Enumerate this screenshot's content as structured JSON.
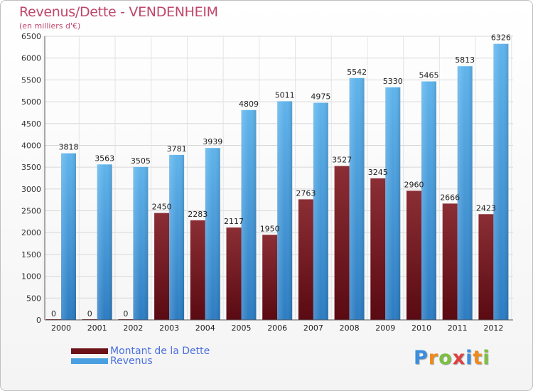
{
  "header": {
    "title": "Revenus/Dette - VENDENHEIM",
    "subtitle": "(en milliers d'€)"
  },
  "colors": {
    "title": "#c0456b",
    "dette_top": "#8b2e35",
    "dette_bottom": "#5a0a12",
    "revenus_top": "#5fb4ec",
    "revenus_bottom": "#2c7cc2",
    "legend_text": "#4a6fe0"
  },
  "legend": {
    "items": [
      {
        "label": "Montant de la Dette",
        "color": "#6b1219"
      },
      {
        "label": "Revenus",
        "color": "#4a9fe0"
      }
    ]
  },
  "logo": {
    "letters": [
      "P",
      "r",
      "o",
      "x",
      "i",
      "t",
      "i"
    ],
    "colors": [
      "#3a8ee0",
      "#f08a1c",
      "#7cc040",
      "#e04040",
      "#3a8ee0",
      "#f08a1c",
      "#7cc040"
    ]
  },
  "chart_data": {
    "type": "bar",
    "categories": [
      "2000",
      "2001",
      "2002",
      "2003",
      "2004",
      "2005",
      "2006",
      "2007",
      "2008",
      "2009",
      "2010",
      "2011",
      "2012"
    ],
    "series": [
      {
        "name": "Montant de la Dette",
        "values": [
          0,
          0,
          0,
          2450,
          2283,
          2117,
          1950,
          2763,
          3527,
          3245,
          2960,
          2666,
          2423
        ]
      },
      {
        "name": "Revenus",
        "values": [
          3818,
          3563,
          3505,
          3781,
          3939,
          4809,
          5011,
          4975,
          5542,
          5330,
          5465,
          5813,
          6326
        ]
      }
    ],
    "ylim": [
      0,
      6500
    ],
    "yticks": [
      0,
      500,
      1000,
      1500,
      2000,
      2500,
      3000,
      3500,
      4000,
      4500,
      5000,
      5500,
      6000,
      6500
    ],
    "grid": true,
    "legend_position": "bottom-left"
  }
}
